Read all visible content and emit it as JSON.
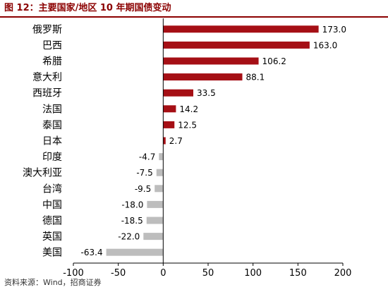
{
  "header": {
    "title": "图 12：主要国家/地区 10 年期国债变动"
  },
  "footer": {
    "source": "资料来源：Wind，招商证券"
  },
  "colors": {
    "title": "#8b0000",
    "rule": "#8b0000",
    "positive_bar": "#a50f15",
    "negative_bar": "#bdbdbd",
    "text": "#000000"
  },
  "chart_data": {
    "type": "bar",
    "orientation": "horizontal",
    "categories": [
      "俄罗斯",
      "巴西",
      "希腊",
      "意大利",
      "西班牙",
      "法国",
      "泰国",
      "日本",
      "印度",
      "澳大利亚",
      "台湾",
      "中国",
      "德国",
      "英国",
      "美国"
    ],
    "values": [
      173.0,
      163.0,
      106.2,
      88.1,
      33.5,
      14.2,
      12.5,
      2.7,
      -4.7,
      -7.5,
      -9.5,
      -18.0,
      -18.5,
      -22.0,
      -63.4
    ],
    "value_labels": [
      "173.0",
      "163.0",
      "106.2",
      "88.1",
      "33.5",
      "14.2",
      "12.5",
      "2.7",
      "-4.7",
      "-7.5",
      "-9.5",
      "-18.0",
      "-18.5",
      "-22.0",
      "-63.4"
    ],
    "xlim": [
      -100,
      200
    ],
    "xticks": [
      -100,
      -50,
      0,
      50,
      100,
      150,
      200
    ],
    "grid": false,
    "legend": "none"
  }
}
